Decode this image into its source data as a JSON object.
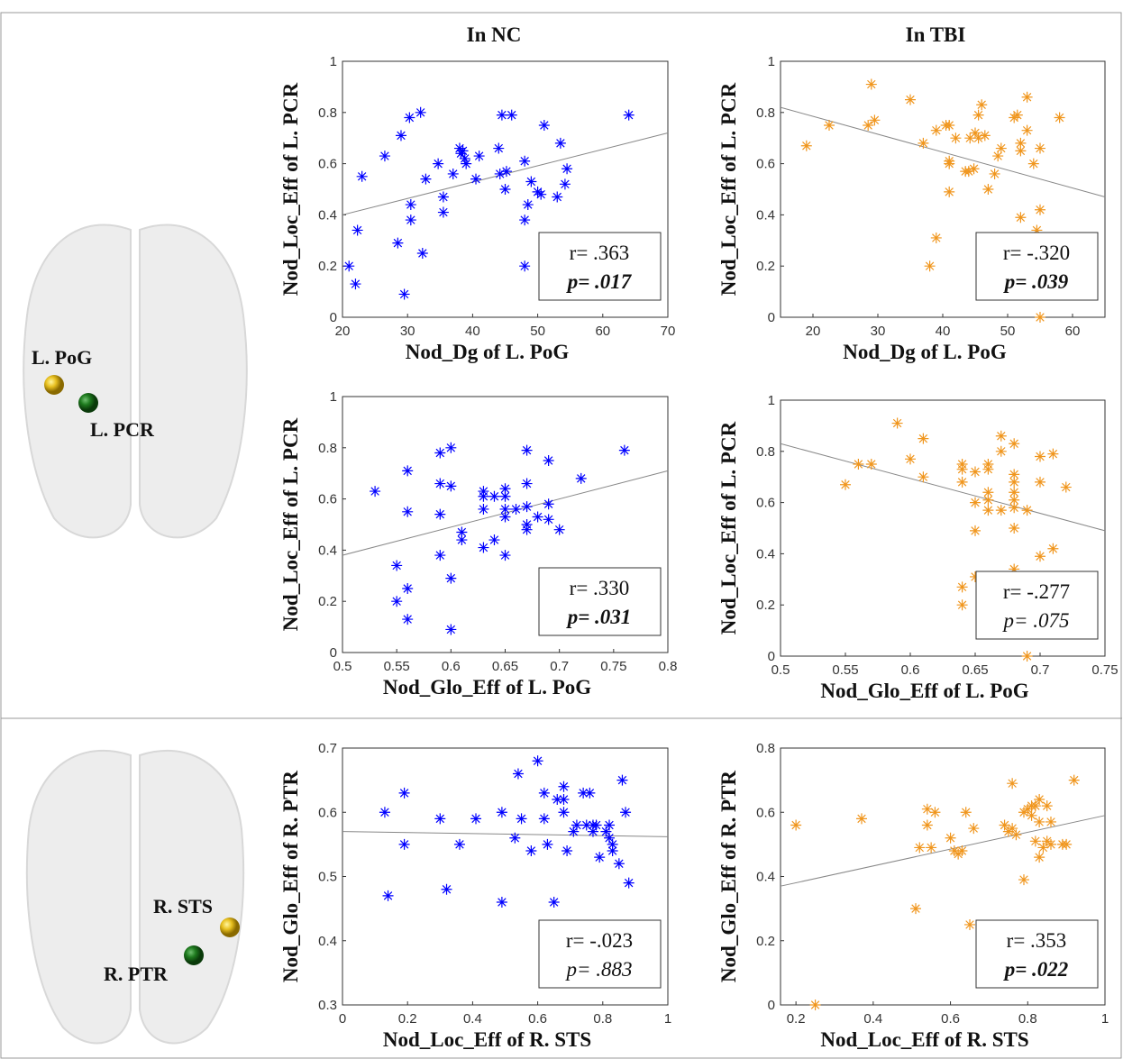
{
  "columns": [
    "In NC",
    "In TBI"
  ],
  "brains": [
    {
      "labels": [
        "L. PoG",
        "L. PCR"
      ]
    },
    {
      "labels": [
        "R. STS",
        "R. PTR"
      ]
    }
  ],
  "chart_data": [
    {
      "type": "scatter",
      "xlabel": "Nod_Dg of L. PoG",
      "ylabel": "Nod_Loc_Eff of L. PCR",
      "color": "#0000ff",
      "x": [
        21,
        22,
        22.3,
        23,
        26.5,
        28.5,
        29,
        29.5,
        30.3,
        30.5,
        30.5,
        32,
        32.3,
        32.8,
        34.7,
        35.5,
        35.5,
        37,
        38,
        38.2,
        38.5,
        38.8,
        39,
        40.5,
        41,
        44,
        44.2,
        44.5,
        45,
        45.2,
        46,
        48,
        48,
        48,
        48.5,
        49,
        50,
        50.5,
        51,
        53,
        53.5,
        54.2,
        54.5,
        64
      ],
      "values": [
        0.2,
        0.13,
        0.34,
        0.55,
        0.63,
        0.29,
        0.71,
        0.09,
        0.78,
        0.44,
        0.38,
        0.8,
        0.25,
        0.54,
        0.6,
        0.47,
        0.41,
        0.56,
        0.66,
        0.64,
        0.65,
        0.62,
        0.6,
        0.54,
        0.63,
        0.66,
        0.56,
        0.79,
        0.5,
        0.57,
        0.79,
        0.61,
        0.38,
        0.2,
        0.44,
        0.53,
        0.49,
        0.48,
        0.75,
        0.47,
        0.68,
        0.52,
        0.58,
        0.79
      ],
      "fit_line": {
        "x": [
          20,
          70
        ],
        "values": [
          0.4,
          0.72
        ]
      },
      "r_label": "r= .363",
      "p_label": "p= .017",
      "p_bold": true,
      "xlim": [
        20,
        70
      ],
      "ylim": [
        0,
        1
      ],
      "xticks": [
        20,
        30,
        40,
        50,
        60,
        70
      ],
      "yticks": [
        0,
        0.2,
        0.4,
        0.6,
        0.8,
        1
      ]
    },
    {
      "type": "scatter",
      "xlabel": "Nod_Dg of L. PoG",
      "ylabel": "Nod_Loc_Eff of L. PCR",
      "color": "#f0961e",
      "x": [
        19,
        22.5,
        28.5,
        29,
        29.5,
        35,
        37,
        39,
        38,
        39,
        40.5,
        41,
        41,
        41,
        41,
        42,
        43.5,
        44,
        44.2,
        44.8,
        45,
        45.5,
        45.5,
        46,
        46.5,
        47,
        48,
        48.5,
        49,
        51,
        51.5,
        52,
        52,
        52,
        53,
        53,
        54,
        54.5,
        55,
        55,
        55,
        58
      ],
      "values": [
        0.67,
        0.75,
        0.75,
        0.91,
        0.77,
        0.85,
        0.68,
        0.31,
        0.2,
        0.73,
        0.75,
        0.75,
        0.61,
        0.6,
        0.49,
        0.7,
        0.57,
        0.57,
        0.7,
        0.58,
        0.72,
        0.7,
        0.79,
        0.83,
        0.71,
        0.5,
        0.56,
        0.63,
        0.66,
        0.78,
        0.79,
        0.68,
        0.39,
        0.65,
        0.86,
        0.73,
        0.6,
        0.34,
        0.42,
        0.66,
        0,
        0.78
      ],
      "fit_line": {
        "x": [
          15,
          65
        ],
        "values": [
          0.82,
          0.47
        ]
      },
      "r_label": "r= -.320",
      "p_label": "p= .039",
      "p_bold": true,
      "xlim": [
        15,
        65
      ],
      "ylim": [
        0,
        1
      ],
      "xticks": [
        20,
        30,
        40,
        50,
        60
      ],
      "yticks": [
        0,
        0.2,
        0.4,
        0.6,
        0.8,
        1
      ]
    },
    {
      "type": "scatter",
      "xlabel": "Nod_Glo_Eff of L. PoG",
      "ylabel": "Nod_Loc_Eff of L. PCR",
      "color": "#0000ff",
      "x": [
        0.53,
        0.55,
        0.55,
        0.56,
        0.56,
        0.56,
        0.56,
        0.59,
        0.59,
        0.59,
        0.59,
        0.6,
        0.6,
        0.6,
        0.6,
        0.61,
        0.61,
        0.63,
        0.63,
        0.63,
        0.63,
        0.64,
        0.64,
        0.65,
        0.65,
        0.65,
        0.65,
        0.65,
        0.66,
        0.67,
        0.67,
        0.67,
        0.67,
        0.67,
        0.68,
        0.69,
        0.69,
        0.69,
        0.7,
        0.72,
        0.76
      ],
      "values": [
        0.63,
        0.34,
        0.2,
        0.71,
        0.55,
        0.25,
        0.13,
        0.78,
        0.66,
        0.54,
        0.38,
        0.8,
        0.65,
        0.29,
        0.09,
        0.47,
        0.44,
        0.63,
        0.61,
        0.56,
        0.41,
        0.61,
        0.44,
        0.64,
        0.61,
        0.56,
        0.53,
        0.38,
        0.56,
        0.79,
        0.66,
        0.57,
        0.5,
        0.48,
        0.53,
        0.75,
        0.58,
        0.52,
        0.48,
        0.68,
        0.79
      ],
      "fit_line": {
        "x": [
          0.5,
          0.8
        ],
        "values": [
          0.38,
          0.71
        ]
      },
      "r_label": "r= .330",
      "p_label": "p= .031",
      "p_bold": true,
      "xlim": [
        0.5,
        0.8
      ],
      "ylim": [
        0,
        1
      ],
      "xticks": [
        0.5,
        0.55,
        0.6,
        0.65,
        0.7,
        0.75,
        0.8
      ],
      "yticks": [
        0,
        0.2,
        0.4,
        0.6,
        0.8,
        1
      ]
    },
    {
      "type": "scatter",
      "xlabel": "Nod_Glo_Eff of L. PoG",
      "ylabel": "Nod_Loc_Eff of L. PCR",
      "color": "#f0961e",
      "x": [
        0.55,
        0.56,
        0.57,
        0.59,
        0.6,
        0.61,
        0.61,
        0.64,
        0.64,
        0.64,
        0.64,
        0.64,
        0.65,
        0.65,
        0.65,
        0.65,
        0.66,
        0.66,
        0.66,
        0.66,
        0.66,
        0.67,
        0.67,
        0.67,
        0.68,
        0.68,
        0.68,
        0.68,
        0.68,
        0.68,
        0.68,
        0.68,
        0.69,
        0.69,
        0.7,
        0.7,
        0.7,
        0.71,
        0.71,
        0.72
      ],
      "values": [
        0.67,
        0.75,
        0.75,
        0.91,
        0.77,
        0.85,
        0.7,
        0.75,
        0.73,
        0.68,
        0.27,
        0.2,
        0.72,
        0.6,
        0.49,
        0.31,
        0.75,
        0.73,
        0.64,
        0.61,
        0.57,
        0.57,
        0.86,
        0.8,
        0.83,
        0.71,
        0.68,
        0.64,
        0.61,
        0.58,
        0.5,
        0.34,
        0.57,
        0,
        0.78,
        0.68,
        0.39,
        0.79,
        0.42,
        0.66
      ],
      "fit_line": {
        "x": [
          0.5,
          0.75
        ],
        "values": [
          0.83,
          0.49
        ]
      },
      "r_label": "r= -.277",
      "p_label": "p= .075",
      "p_bold": false,
      "xlim": [
        0.5,
        0.75
      ],
      "ylim": [
        0,
        1
      ],
      "xticks": [
        0.5,
        0.55,
        0.6,
        0.65,
        0.7,
        0.75
      ],
      "yticks": [
        0,
        0.2,
        0.4,
        0.6,
        0.8,
        1
      ]
    },
    {
      "type": "scatter",
      "xlabel": "Nod_Loc_Eff of R. STS",
      "ylabel": "Nod_Glo_Eff of R. PTR",
      "color": "#0000ff",
      "x": [
        0.13,
        0.14,
        0.19,
        0.19,
        0.3,
        0.32,
        0.36,
        0.41,
        0.49,
        0.49,
        0.53,
        0.54,
        0.55,
        0.58,
        0.6,
        0.62,
        0.62,
        0.63,
        0.65,
        0.66,
        0.68,
        0.68,
        0.68,
        0.69,
        0.71,
        0.72,
        0.74,
        0.75,
        0.76,
        0.77,
        0.77,
        0.78,
        0.79,
        0.81,
        0.82,
        0.82,
        0.83,
        0.83,
        0.85,
        0.86,
        0.87,
        0.88
      ],
      "values": [
        0.6,
        0.47,
        0.63,
        0.55,
        0.59,
        0.48,
        0.55,
        0.59,
        0.6,
        0.46,
        0.56,
        0.66,
        0.59,
        0.54,
        0.68,
        0.63,
        0.59,
        0.55,
        0.46,
        0.62,
        0.64,
        0.62,
        0.6,
        0.54,
        0.57,
        0.58,
        0.63,
        0.58,
        0.63,
        0.57,
        0.58,
        0.58,
        0.53,
        0.57,
        0.58,
        0.56,
        0.55,
        0.54,
        0.52,
        0.65,
        0.6,
        0.49
      ],
      "fit_line": {
        "x": [
          0,
          1
        ],
        "values": [
          0.57,
          0.562
        ]
      },
      "r_label": "r= -.023",
      "p_label": "p= .883",
      "p_bold": false,
      "xlim": [
        0,
        1
      ],
      "ylim": [
        0.3,
        0.7
      ],
      "xticks": [
        0,
        0.2,
        0.4,
        0.6,
        0.8,
        1
      ],
      "yticks": [
        0.3,
        0.4,
        0.5,
        0.6,
        0.7
      ]
    },
    {
      "type": "scatter",
      "xlabel": "Nod_Loc_Eff of R. STS",
      "ylabel": "Nod_Glo_Eff of R. PTR",
      "color": "#f0961e",
      "x": [
        0.2,
        0.25,
        0.37,
        0.51,
        0.52,
        0.54,
        0.54,
        0.55,
        0.56,
        0.6,
        0.61,
        0.62,
        0.63,
        0.64,
        0.65,
        0.66,
        0.74,
        0.75,
        0.76,
        0.76,
        0.77,
        0.79,
        0.79,
        0.8,
        0.81,
        0.81,
        0.82,
        0.82,
        0.83,
        0.83,
        0.83,
        0.84,
        0.85,
        0.85,
        0.86,
        0.86,
        0.89,
        0.9,
        0.92
      ],
      "values": [
        0.56,
        0,
        0.58,
        0.3,
        0.49,
        0.61,
        0.56,
        0.49,
        0.6,
        0.52,
        0.48,
        0.47,
        0.48,
        0.6,
        0.25,
        0.55,
        0.56,
        0.54,
        0.69,
        0.55,
        0.53,
        0.39,
        0.6,
        0.61,
        0.62,
        0.59,
        0.51,
        0.62,
        0.57,
        0.64,
        0.46,
        0.49,
        0.62,
        0.51,
        0.5,
        0.57,
        0.5,
        0.5,
        0.7
      ],
      "fit_line": {
        "x": [
          0.16,
          1
        ],
        "values": [
          0.37,
          0.59
        ]
      },
      "r_label": "r= .353",
      "p_label": "p= .022",
      "p_bold": true,
      "xlim": [
        0.16,
        1
      ],
      "ylim": [
        0,
        0.8
      ],
      "xticks": [
        0.2,
        0.4,
        0.6,
        0.8,
        1
      ],
      "yticks": [
        0,
        0.2,
        0.4,
        0.6,
        0.8
      ]
    }
  ]
}
